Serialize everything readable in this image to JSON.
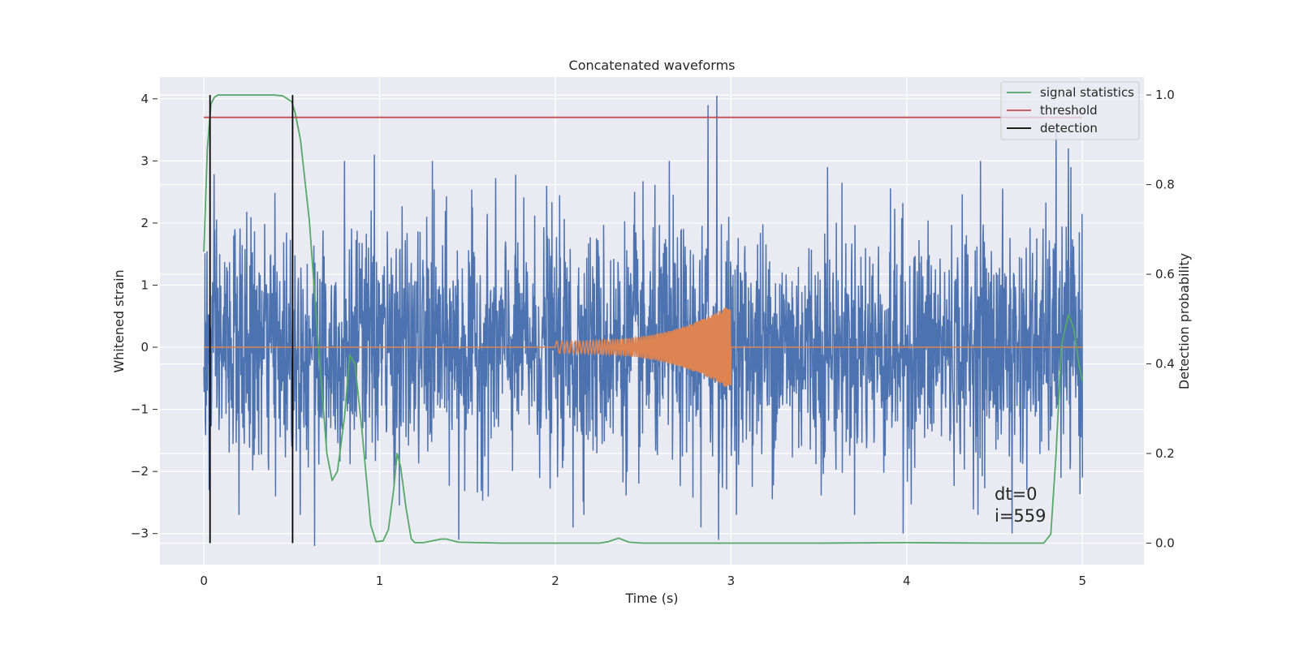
{
  "chart_data": {
    "type": "line",
    "title": "Concatenated waveforms",
    "xlabel": "Time (s)",
    "ylabel": "Whitened strain",
    "y2label": "Detection probability",
    "xlim": [
      -0.25,
      5.35
    ],
    "ylim": [
      -3.5,
      4.35
    ],
    "y2lim": [
      -0.048,
      1.04
    ],
    "x_ticks": [
      0,
      1,
      2,
      3,
      4,
      5
    ],
    "y_ticks": [
      -3,
      -2,
      -1,
      0,
      1,
      2,
      3,
      4
    ],
    "y2_ticks": [
      0.0,
      0.2,
      0.4,
      0.6,
      0.8,
      1.0
    ],
    "x_tick_labels": [
      "0",
      "1",
      "2",
      "3",
      "4",
      "5"
    ],
    "y_tick_labels": [
      "−3",
      "−2",
      "−1",
      "0",
      "1",
      "2",
      "3",
      "4"
    ],
    "y2_tick_labels": [
      "0.0",
      "0.2",
      "0.4",
      "0.6",
      "0.8",
      "1.0"
    ],
    "grid": true,
    "legend_position": "top-right",
    "legend": [
      {
        "label": "signal statistics",
        "color": "#55a868"
      },
      {
        "label": "threshold",
        "color": "#c44e52"
      },
      {
        "label": "detection",
        "color": "#000000"
      }
    ],
    "series": [
      {
        "name": "",
        "axis": "left",
        "kind": "noise",
        "color": "#4c72b0",
        "x_range": [
          0,
          5
        ],
        "typical_amplitude": 1.2,
        "peaks": [
          {
            "x": 0.03,
            "y": -2.3
          },
          {
            "x": 0.17,
            "y": 1.8
          },
          {
            "x": 0.2,
            "y": -2.7
          },
          {
            "x": 0.63,
            "y": -3.2
          },
          {
            "x": 0.8,
            "y": 3.0
          },
          {
            "x": 0.97,
            "y": 3.1
          },
          {
            "x": 1.3,
            "y": 3.0
          },
          {
            "x": 1.45,
            "y": -3.1
          },
          {
            "x": 1.95,
            "y": 2.6
          },
          {
            "x": 2.1,
            "y": -2.9
          },
          {
            "x": 2.45,
            "y": 2.5
          },
          {
            "x": 2.65,
            "y": 3.0
          },
          {
            "x": 2.83,
            "y": -2.9
          },
          {
            "x": 2.87,
            "y": 3.9
          },
          {
            "x": 2.92,
            "y": 4.05
          },
          {
            "x": 2.93,
            "y": -3.1
          },
          {
            "x": 3.55,
            "y": 2.9
          },
          {
            "x": 3.98,
            "y": -3.0
          },
          {
            "x": 4.42,
            "y": 3.0
          },
          {
            "x": 4.6,
            "y": 3.1
          },
          {
            "x": 4.6,
            "y": -3.0
          },
          {
            "x": 4.85,
            "y": 3.6
          },
          {
            "x": 4.92,
            "y": 3.2
          },
          {
            "x": 5.0,
            "y": -2.1
          }
        ]
      },
      {
        "name": "",
        "axis": "left",
        "kind": "chirp",
        "color": "#dd8452",
        "x_range": [
          0,
          5
        ],
        "chirp_start": 2.0,
        "chirp_end": 3.0,
        "start_amplitude": 0.1,
        "end_amplitude": 0.7
      },
      {
        "name": "signal statistics",
        "axis": "right",
        "color": "#55a868",
        "x": [
          0.0,
          0.02,
          0.04,
          0.06,
          0.08,
          0.1,
          0.2,
          0.3,
          0.4,
          0.45,
          0.5,
          0.52,
          0.55,
          0.6,
          0.65,
          0.7,
          0.73,
          0.76,
          0.8,
          0.83,
          0.86,
          0.9,
          0.95,
          0.98,
          1.02,
          1.05,
          1.08,
          1.1,
          1.12,
          1.15,
          1.18,
          1.2,
          1.25,
          1.35,
          1.38,
          1.45,
          1.7,
          2.25,
          2.3,
          2.36,
          2.42,
          2.5,
          3.5,
          4.0,
          4.5,
          4.78,
          4.82,
          4.85,
          4.88,
          4.92,
          4.95,
          4.98,
          5.0
        ],
        "y": [
          0.65,
          0.88,
          0.98,
          0.995,
          1.0,
          1.0,
          1.0,
          1.0,
          1.0,
          0.998,
          0.985,
          0.96,
          0.9,
          0.72,
          0.45,
          0.2,
          0.14,
          0.16,
          0.28,
          0.42,
          0.4,
          0.25,
          0.04,
          0.003,
          0.005,
          0.03,
          0.12,
          0.2,
          0.17,
          0.08,
          0.01,
          0.001,
          0.001,
          0.009,
          0.009,
          0.002,
          0.0,
          0.0,
          0.003,
          0.011,
          0.002,
          0.0,
          0.0,
          0.001,
          0.0,
          0.0,
          0.02,
          0.2,
          0.44,
          0.51,
          0.48,
          0.4,
          0.36
        ]
      },
      {
        "name": "threshold",
        "axis": "right",
        "color": "#c44e52",
        "x": [
          0,
          5
        ],
        "y": [
          0.95,
          0.95
        ]
      },
      {
        "name": "detection",
        "axis": "right",
        "color": "#000000",
        "kind": "vlines",
        "x": [
          0.035,
          0.505
        ],
        "ymin": 0.0,
        "ymax": 1.0
      }
    ],
    "annotations": [
      "dt=0",
      "i=559"
    ]
  }
}
